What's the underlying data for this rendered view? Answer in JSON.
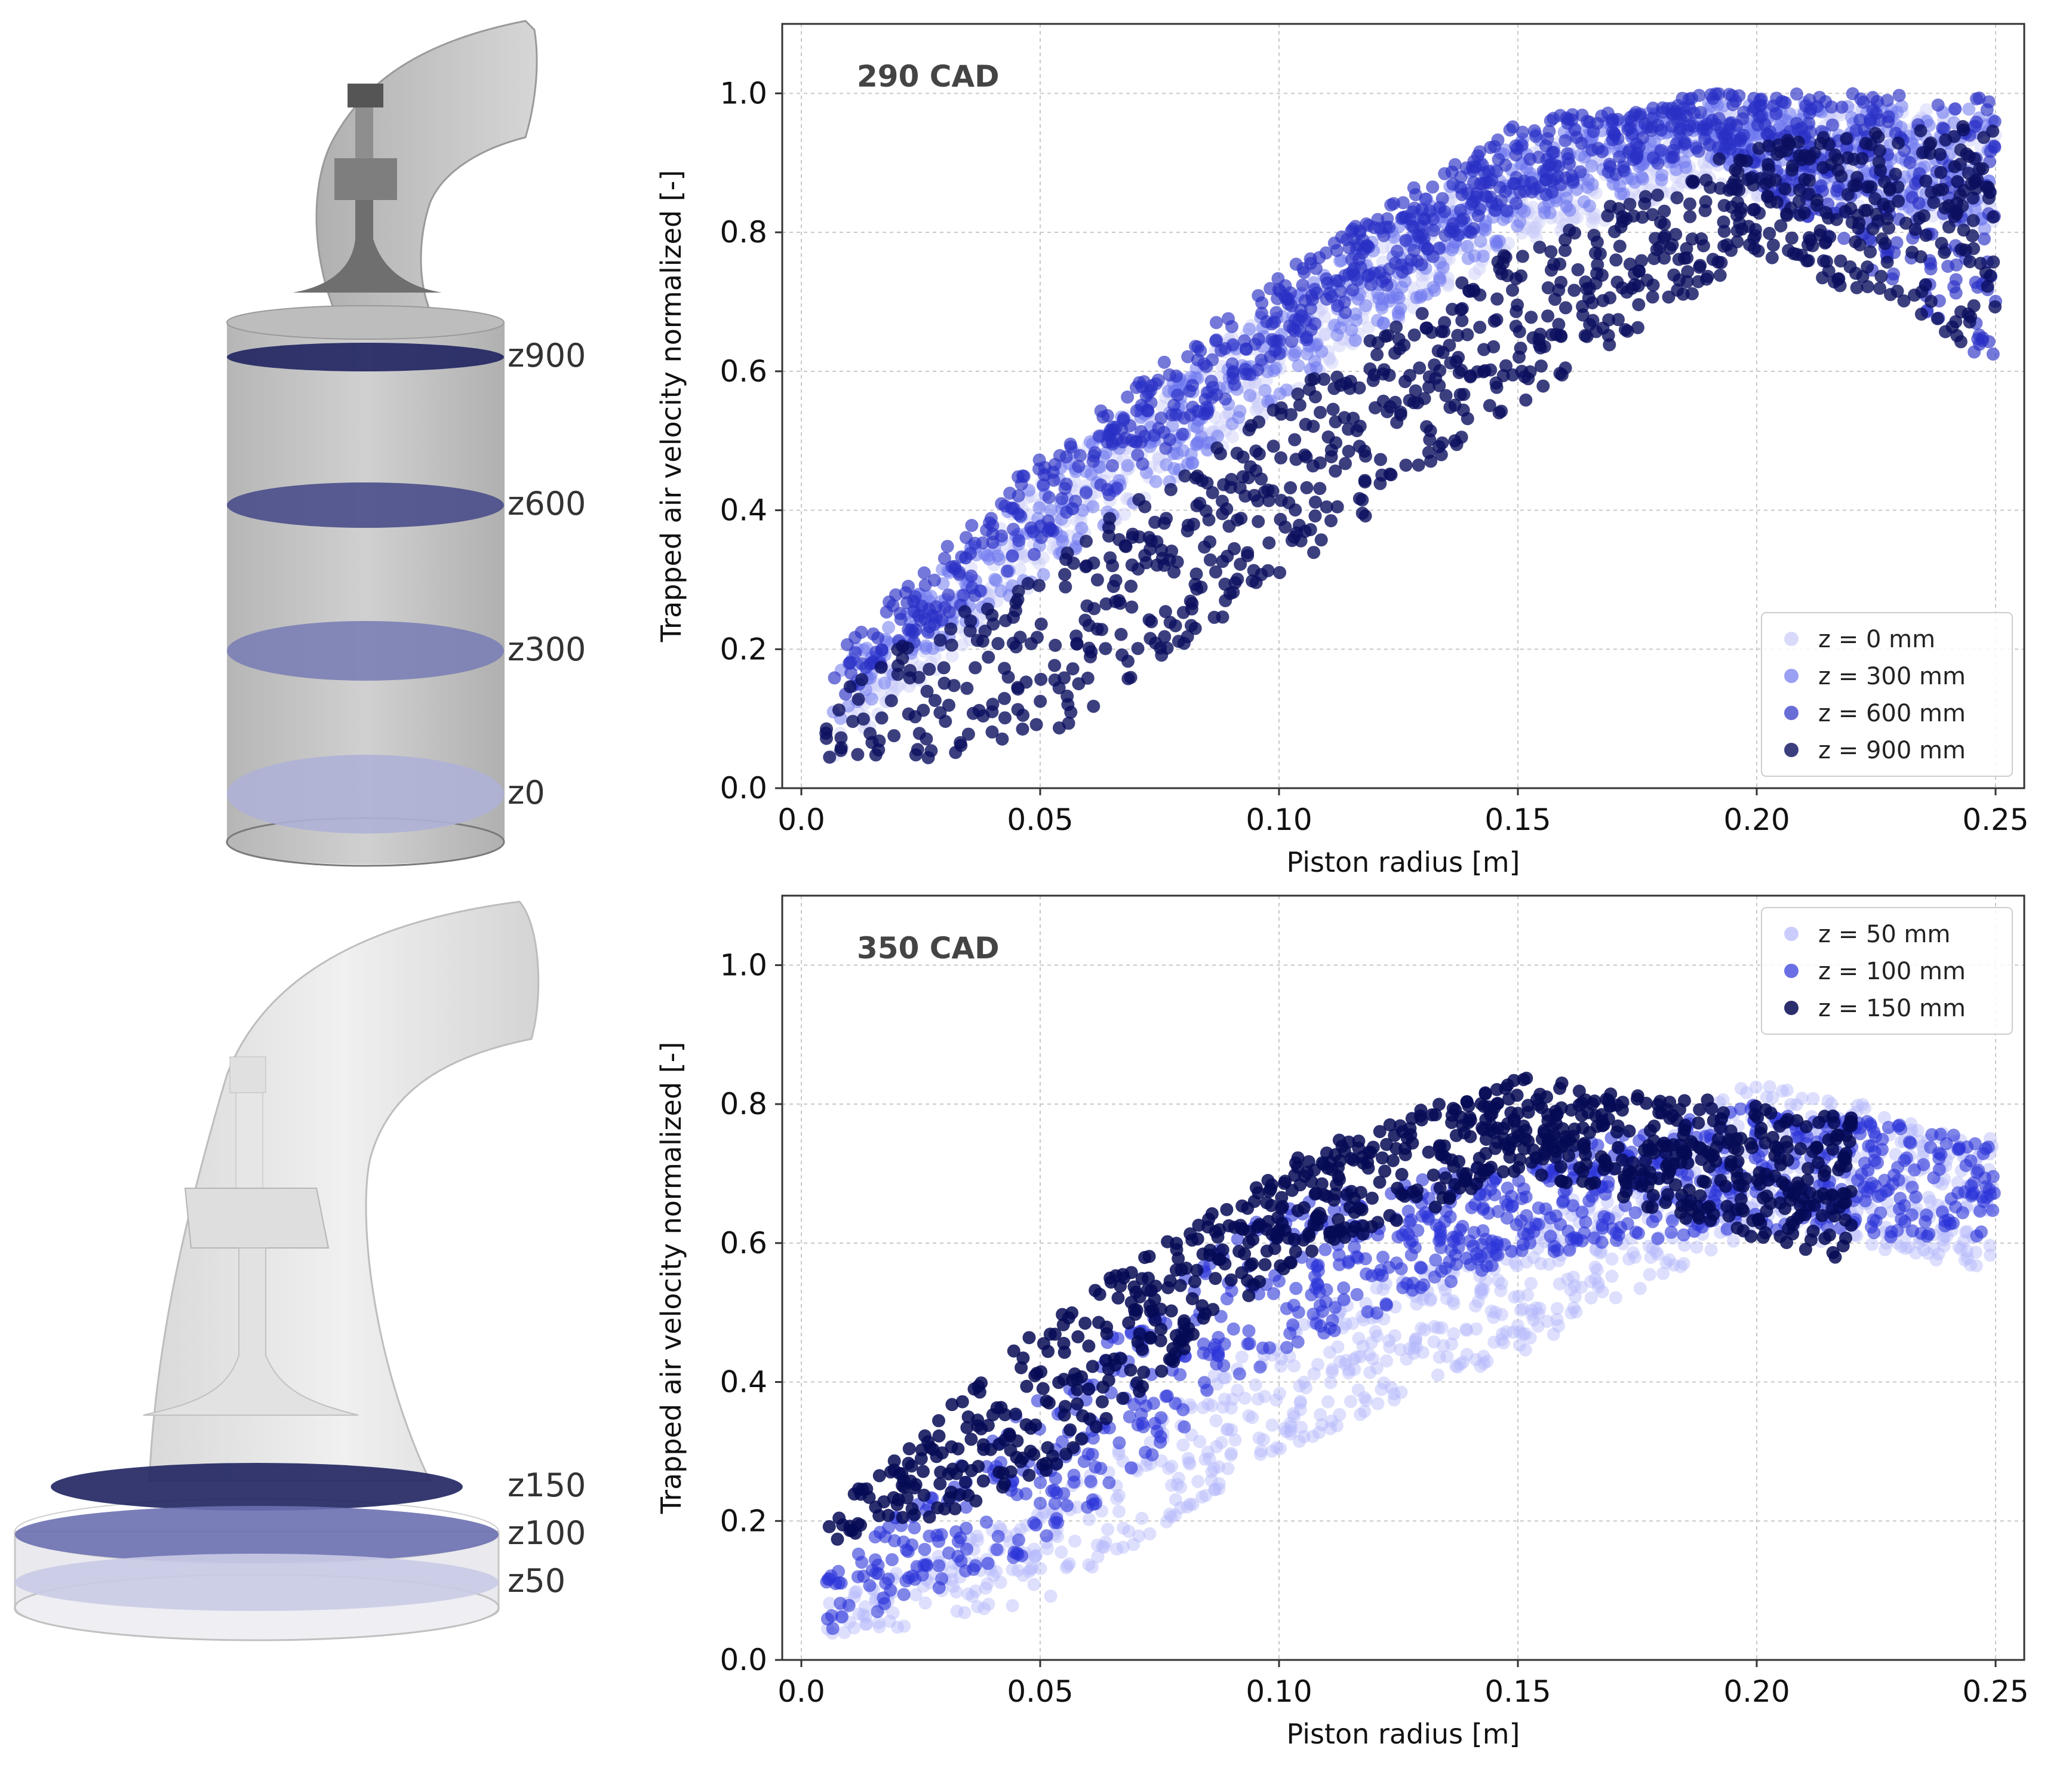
{
  "geometry_top": {
    "planes": [
      {
        "label": "z900",
        "color": "#1f2360"
      },
      {
        "label": "z600",
        "color": "#4a4e8a"
      },
      {
        "label": "z300",
        "color": "#7b7fb5"
      },
      {
        "label": "z0",
        "color": "#aeb1d6"
      }
    ]
  },
  "geometry_bottom": {
    "planes": [
      {
        "label": "z150",
        "color": "#1f2360"
      },
      {
        "label": "z100",
        "color": "#6c70b0"
      },
      {
        "label": "z50",
        "color": "#c9cbe6"
      }
    ]
  },
  "chart_data": [
    {
      "type": "scatter",
      "annotation": "290 CAD",
      "xlabel": "Piston radius [m]",
      "ylabel": "Trapped air velocity normalized [-]",
      "xlim": [
        -0.004,
        0.256
      ],
      "ylim": [
        0.0,
        1.1
      ],
      "xticks": [
        "0.0",
        "0.05",
        "0.10",
        "0.15",
        "0.20",
        "0.25"
      ],
      "xtick_values": [
        0.0,
        0.05,
        0.1,
        0.15,
        0.2,
        0.25
      ],
      "yticks": [
        "0.0",
        "0.2",
        "0.4",
        "0.6",
        "0.8",
        "1.0"
      ],
      "ytick_values": [
        0.0,
        0.2,
        0.4,
        0.6,
        0.8,
        1.0
      ],
      "grid": true,
      "legend_position": "lower-right",
      "series": [
        {
          "name": "z = 0 mm",
          "color": "#c9cbf8",
          "alpha": 0.45,
          "band": [
            [
              0.005,
              0.03,
              0.07
            ],
            [
              0.05,
              0.3,
              0.45
            ],
            [
              0.1,
              0.55,
              0.7
            ],
            [
              0.15,
              0.78,
              0.92
            ],
            [
              0.19,
              0.86,
              0.98
            ],
            [
              0.25,
              0.8,
              0.98
            ]
          ]
        },
        {
          "name": "z = 300 mm",
          "color": "#6f78ee",
          "alpha": 0.55,
          "band": [
            [
              0.005,
              0.08,
              0.16
            ],
            [
              0.05,
              0.3,
              0.45
            ],
            [
              0.1,
              0.56,
              0.7
            ],
            [
              0.15,
              0.8,
              0.94
            ],
            [
              0.19,
              0.9,
              0.99
            ],
            [
              0.25,
              0.8,
              0.98
            ]
          ]
        },
        {
          "name": "z = 600 mm",
          "color": "#2a2fc4",
          "alpha": 0.65,
          "band": [
            [
              0.005,
              0.1,
              0.18
            ],
            [
              0.05,
              0.34,
              0.48
            ],
            [
              0.1,
              0.62,
              0.74
            ],
            [
              0.15,
              0.84,
              0.96
            ],
            [
              0.19,
              0.92,
              1.0
            ],
            [
              0.25,
              0.6,
              1.0
            ]
          ]
        },
        {
          "name": "z = 900 mm",
          "color": "#0b0f5e",
          "alpha": 0.8,
          "band": [
            [
              0.005,
              0.02,
              0.14
            ],
            [
              0.05,
              0.06,
              0.32
            ],
            [
              0.1,
              0.3,
              0.56
            ],
            [
              0.15,
              0.55,
              0.78
            ],
            [
              0.2,
              0.77,
              0.93
            ],
            [
              0.25,
              0.62,
              0.96
            ]
          ]
        }
      ]
    },
    {
      "type": "scatter",
      "annotation": "350 CAD",
      "xlabel": "Piston radius [m]",
      "ylabel": "Trapped air velocity normalized [-]",
      "xlim": [
        -0.004,
        0.256
      ],
      "ylim": [
        0.0,
        1.1
      ],
      "xticks": [
        "0.0",
        "0.05",
        "0.10",
        "0.15",
        "0.20",
        "0.25"
      ],
      "xtick_values": [
        0.0,
        0.05,
        0.1,
        0.15,
        0.2,
        0.25
      ],
      "yticks": [
        "0.0",
        "0.2",
        "0.4",
        "0.6",
        "0.8",
        "1.0"
      ],
      "ytick_values": [
        0.0,
        0.2,
        0.4,
        0.6,
        0.8,
        1.0
      ],
      "grid": true,
      "legend_position": "upper-right",
      "series": [
        {
          "name": "z = 50 mm",
          "color": "#b4b8fb",
          "alpha": 0.45,
          "band": [
            [
              0.005,
              0.03,
              0.08
            ],
            [
              0.05,
              0.08,
              0.22
            ],
            [
              0.1,
              0.3,
              0.48
            ],
            [
              0.15,
              0.44,
              0.62
            ],
            [
              0.2,
              0.62,
              0.84
            ],
            [
              0.25,
              0.55,
              0.75
            ]
          ]
        },
        {
          "name": "z = 100 mm",
          "color": "#2b33d8",
          "alpha": 0.6,
          "band": [
            [
              0.005,
              0.04,
              0.12
            ],
            [
              0.05,
              0.16,
              0.38
            ],
            [
              0.1,
              0.44,
              0.66
            ],
            [
              0.15,
              0.58,
              0.72
            ],
            [
              0.2,
              0.62,
              0.8
            ],
            [
              0.25,
              0.6,
              0.75
            ]
          ]
        },
        {
          "name": "z = 150 mm",
          "color": "#060a55",
          "alpha": 0.85,
          "band": [
            [
              0.005,
              0.15,
              0.21
            ],
            [
              0.05,
              0.26,
              0.48
            ],
            [
              0.1,
              0.56,
              0.72
            ],
            [
              0.15,
              0.7,
              0.84
            ],
            [
              0.22,
              0.57,
              0.78
            ]
          ]
        }
      ]
    }
  ]
}
